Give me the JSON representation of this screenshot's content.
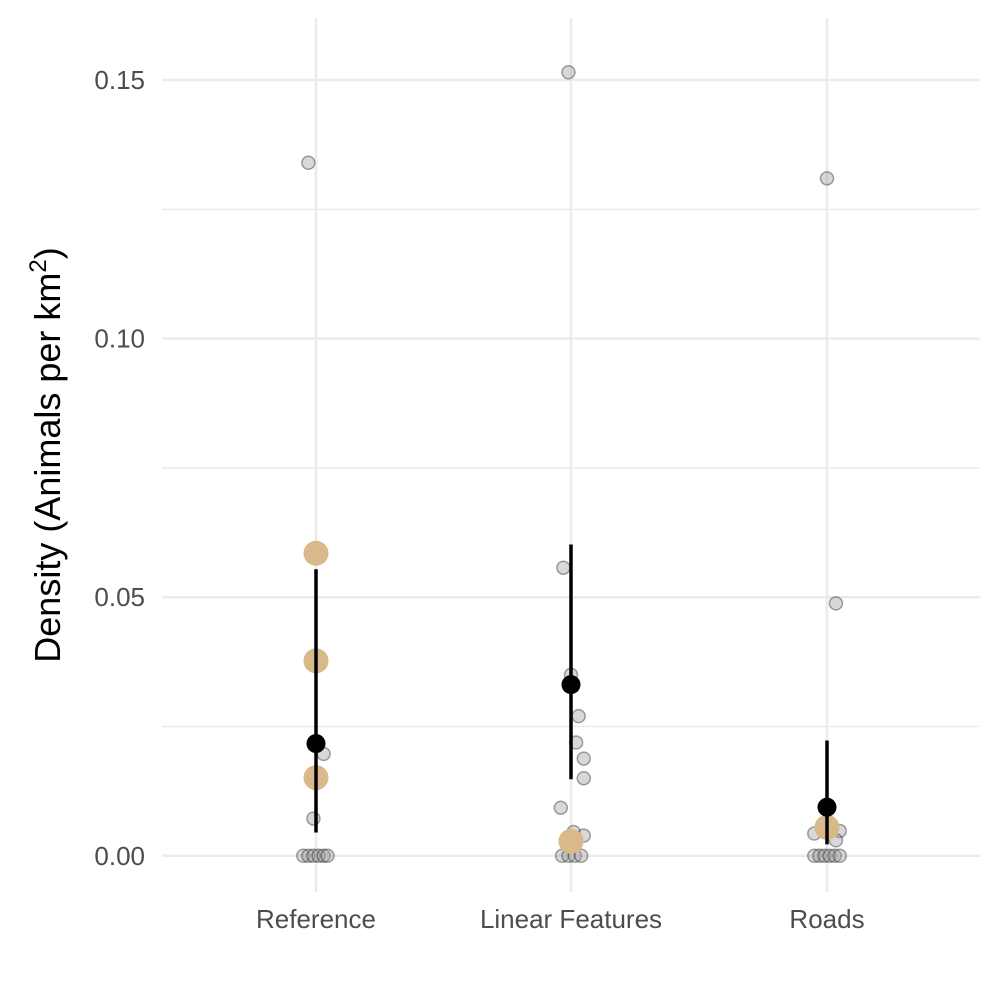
{
  "chart_data": {
    "type": "scatter",
    "title": "",
    "xlabel": "",
    "ylabel_parts": {
      "base": "Density (Animals per km",
      "superscript": "2",
      "suffix": ")"
    },
    "categories": [
      "Reference",
      "Linear Features",
      "Roads"
    ],
    "ylim": [
      -0.007,
      0.162
    ],
    "y_ticks": [
      {
        "value": 0.0,
        "label": "0.00"
      },
      {
        "value": 0.05,
        "label": "0.05"
      },
      {
        "value": 0.1,
        "label": "0.10"
      },
      {
        "value": 0.15,
        "label": "0.15"
      }
    ],
    "y_minor_ticks": [
      0.025,
      0.075,
      0.125
    ],
    "grid": true,
    "colors": {
      "raw_point": "#9e9e9e",
      "raw_point_alpha": 0.4,
      "highlight_point": "#d9b98a",
      "summary": "#000000",
      "grid": "#ebebeb"
    },
    "series": [
      {
        "role": "individual observations",
        "points": [
          {
            "x": "Reference",
            "jitter": -0.03,
            "y": 0.134
          },
          {
            "x": "Reference",
            "jitter": 0.03,
            "y": 0.0197
          },
          {
            "x": "Reference",
            "jitter": -0.01,
            "y": 0.0072
          },
          {
            "x": "Reference",
            "jitter": -0.05,
            "y": 0.0
          },
          {
            "x": "Reference",
            "jitter": -0.03,
            "y": 0.0
          },
          {
            "x": "Reference",
            "jitter": -0.01,
            "y": 0.0
          },
          {
            "x": "Reference",
            "jitter": 0.01,
            "y": 0.0
          },
          {
            "x": "Reference",
            "jitter": 0.03,
            "y": 0.0
          },
          {
            "x": "Reference",
            "jitter": 0.045,
            "y": 0.0
          },
          {
            "x": "Linear Features",
            "jitter": -0.01,
            "y": 0.1515
          },
          {
            "x": "Linear Features",
            "jitter": -0.03,
            "y": 0.0557
          },
          {
            "x": "Linear Features",
            "jitter": 0.0,
            "y": 0.035
          },
          {
            "x": "Linear Features",
            "jitter": 0.03,
            "y": 0.027
          },
          {
            "x": "Linear Features",
            "jitter": 0.02,
            "y": 0.0219
          },
          {
            "x": "Linear Features",
            "jitter": 0.05,
            "y": 0.0188
          },
          {
            "x": "Linear Features",
            "jitter": 0.05,
            "y": 0.015
          },
          {
            "x": "Linear Features",
            "jitter": -0.04,
            "y": 0.0093
          },
          {
            "x": "Linear Features",
            "jitter": 0.01,
            "y": 0.0046
          },
          {
            "x": "Linear Features",
            "jitter": 0.05,
            "y": 0.0039
          },
          {
            "x": "Linear Features",
            "jitter": -0.035,
            "y": 0.0
          },
          {
            "x": "Linear Features",
            "jitter": -0.01,
            "y": 0.0
          },
          {
            "x": "Linear Features",
            "jitter": 0.015,
            "y": 0.0
          },
          {
            "x": "Linear Features",
            "jitter": 0.04,
            "y": 0.0
          },
          {
            "x": "Roads",
            "jitter": 0.0,
            "y": 0.131
          },
          {
            "x": "Roads",
            "jitter": 0.035,
            "y": 0.0488
          },
          {
            "x": "Roads",
            "jitter": -0.05,
            "y": 0.0043
          },
          {
            "x": "Roads",
            "jitter": 0.05,
            "y": 0.0048
          },
          {
            "x": "Roads",
            "jitter": 0.035,
            "y": 0.003
          },
          {
            "x": "Roads",
            "jitter": -0.05,
            "y": 0.0
          },
          {
            "x": "Roads",
            "jitter": -0.03,
            "y": 0.0
          },
          {
            "x": "Roads",
            "jitter": -0.01,
            "y": 0.0
          },
          {
            "x": "Roads",
            "jitter": 0.01,
            "y": 0.0
          },
          {
            "x": "Roads",
            "jitter": 0.03,
            "y": 0.0
          },
          {
            "x": "Roads",
            "jitter": 0.05,
            "y": 0.0
          }
        ]
      },
      {
        "role": "highlighted observations",
        "points": [
          {
            "x": "Reference",
            "jitter": 0.0,
            "y": 0.0585
          },
          {
            "x": "Reference",
            "jitter": 0.0,
            "y": 0.0377
          },
          {
            "x": "Reference",
            "jitter": 0.0,
            "y": 0.0151
          },
          {
            "x": "Linear Features",
            "jitter": 0.0,
            "y": 0.0028
          },
          {
            "x": "Roads",
            "jitter": 0.0,
            "y": 0.0055
          }
        ]
      },
      {
        "role": "mean and interval",
        "summaries": [
          {
            "x": "Reference",
            "mean": 0.0217,
            "low": 0.0045,
            "high": 0.0554
          },
          {
            "x": "Linear Features",
            "mean": 0.0331,
            "low": 0.0148,
            "high": 0.0602
          },
          {
            "x": "Roads",
            "mean": 0.0094,
            "low": 0.0022,
            "high": 0.0223
          }
        ]
      }
    ]
  }
}
